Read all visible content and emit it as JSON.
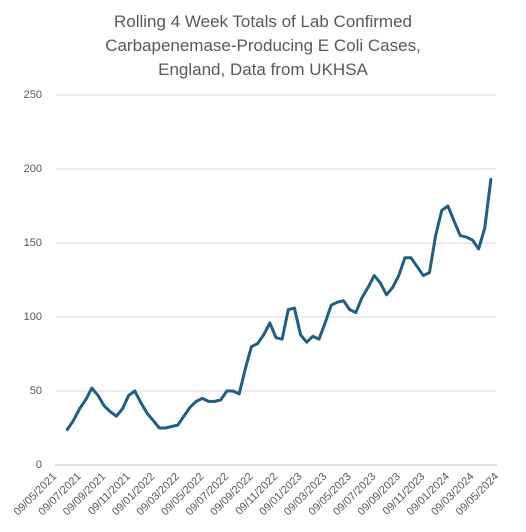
{
  "chart_data": {
    "type": "line",
    "title": "Rolling 4 Week Totals of Lab Confirmed Carbapenemase-Producing E Coli Cases, England, Data from UKHSA",
    "categories": [
      "09/05/2021",
      null,
      null,
      null,
      "09/07/2021",
      null,
      null,
      null,
      "09/09/2021",
      null,
      null,
      null,
      "09/11/2021",
      null,
      null,
      null,
      "09/01/2022",
      null,
      null,
      null,
      "09/03/2022",
      null,
      null,
      null,
      "09/05/2022",
      null,
      null,
      null,
      "09/07/2022",
      null,
      null,
      null,
      "09/09/2022",
      null,
      null,
      null,
      "09/11/2022",
      null,
      null,
      null,
      "09/01/2023",
      null,
      null,
      null,
      "09/03/2023",
      null,
      null,
      null,
      "09/05/2023",
      null,
      null,
      null,
      "09/07/2023",
      null,
      null,
      null,
      "09/09/2023",
      null,
      null,
      null,
      "09/11/2023",
      null,
      null,
      null,
      "09/01/2024",
      null,
      null,
      null,
      "09/03/2024",
      null,
      null,
      null,
      "09/05/2024"
    ],
    "values": [
      null,
      null,
      24,
      30,
      38,
      44,
      52,
      47,
      40,
      36,
      33,
      38,
      47,
      50,
      42,
      35,
      30,
      25,
      25,
      26,
      27,
      33,
      39,
      43,
      45,
      43,
      43,
      44,
      50,
      50,
      48,
      65,
      80,
      82,
      88,
      96,
      86,
      85,
      105,
      106,
      88,
      83,
      87,
      85,
      96,
      108,
      110,
      111,
      105,
      103,
      113,
      120,
      128,
      123,
      115,
      120,
      128,
      140,
      140,
      134,
      128,
      130,
      155,
      172,
      175,
      165,
      155,
      154,
      152,
      146,
      160,
      193,
      null
    ],
    "color": "#1f5f7f",
    "ylim": [
      0,
      250
    ],
    "yticks": [
      0,
      50,
      100,
      150,
      200,
      250
    ],
    "grid": true
  }
}
